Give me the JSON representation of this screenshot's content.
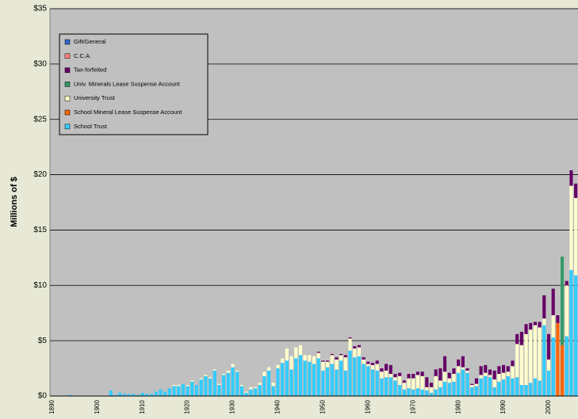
{
  "chart_data": {
    "type": "stacked-bar",
    "y_label": "Millions of $",
    "ylim": [
      0,
      35
    ],
    "yticks": [
      {
        "value": 0,
        "label": "$0"
      },
      {
        "value": 5,
        "label": "$5"
      },
      {
        "value": 10,
        "label": "$10"
      },
      {
        "value": 15,
        "label": "$15"
      },
      {
        "value": 20,
        "label": "$20"
      },
      {
        "value": 25,
        "label": "$25"
      },
      {
        "value": 30,
        "label": "$30"
      },
      {
        "value": 35,
        "label": "$35"
      }
    ],
    "grid": true,
    "legend": "upper-left",
    "categories": [
      "1890",
      null,
      null,
      null,
      null,
      null,
      null,
      null,
      null,
      null,
      "1900",
      null,
      null,
      null,
      null,
      null,
      null,
      null,
      null,
      null,
      "1910",
      null,
      null,
      null,
      null,
      null,
      null,
      null,
      null,
      null,
      "1920",
      null,
      null,
      null,
      null,
      null,
      null,
      null,
      null,
      null,
      "1930",
      null,
      null,
      null,
      null,
      null,
      null,
      null,
      null,
      null,
      "1940",
      null,
      null,
      null,
      null,
      null,
      null,
      null,
      null,
      null,
      "1950",
      null,
      null,
      null,
      null,
      null,
      null,
      null,
      null,
      null,
      "1960",
      null,
      null,
      null,
      null,
      null,
      null,
      null,
      null,
      null,
      "1970",
      null,
      null,
      null,
      null,
      null,
      null,
      null,
      null,
      null,
      "1980",
      null,
      null,
      null,
      null,
      null,
      null,
      null,
      null,
      null,
      "1990",
      null,
      null,
      null,
      null,
      null,
      null,
      null,
      null,
      null,
      "2000",
      null,
      null,
      null,
      null,
      null,
      null
    ],
    "series": [
      {
        "name": "School Trust",
        "color": "#33ccff",
        "values": [
          0,
          0,
          0,
          0,
          0.1,
          0,
          0,
          0,
          0,
          0,
          0,
          0,
          0,
          0.5,
          0.1,
          0.3,
          0.2,
          0.2,
          0.2,
          0.1,
          0.3,
          0.2,
          0.2,
          0.4,
          0.6,
          0.4,
          0.7,
          0.9,
          0.9,
          1.1,
          0.9,
          1.3,
          1.0,
          1.5,
          1.8,
          1.6,
          2.3,
          1.0,
          1.9,
          2.1,
          2.6,
          2.2,
          0.9,
          0.3,
          0.6,
          0.7,
          1.0,
          1.8,
          2.3,
          0.9,
          2.5,
          3.0,
          3.2,
          2.4,
          3.4,
          3.7,
          3.2,
          3.1,
          2.9,
          3.4,
          2.3,
          2.6,
          2.9,
          2.4,
          3.2,
          2.3,
          4.1,
          3.5,
          3.6,
          2.9,
          2.7,
          2.4,
          2.3,
          1.6,
          1.7,
          1.7,
          1.4,
          1.0,
          0.6,
          0.7,
          0.6,
          0.7,
          0.6,
          0.5,
          0.3,
          0.6,
          0.8,
          1.3,
          1.2,
          1.3,
          2.1,
          2.4,
          2.1,
          0.8,
          0.9,
          1.6,
          1.8,
          1.7,
          0.8,
          1.3,
          1.5,
          1.8,
          1.6,
          1.7,
          1.0,
          1.0,
          1.2,
          1.6,
          1.4,
          6.4,
          2.3,
          5.3,
          0,
          0,
          5.4,
          11.4,
          10.9
        ]
      },
      {
        "name": "School Mineral Lease Suspense Account",
        "color": "#ff6600",
        "values": [
          0,
          0,
          0,
          0,
          0,
          0,
          0,
          0,
          0,
          0,
          0,
          0,
          0,
          0,
          0,
          0,
          0,
          0,
          0,
          0,
          0,
          0,
          0,
          0,
          0,
          0,
          0,
          0,
          0,
          0,
          0,
          0,
          0,
          0,
          0,
          0,
          0,
          0,
          0,
          0,
          0,
          0,
          0,
          0,
          0,
          0,
          0,
          0,
          0,
          0,
          0,
          0,
          0,
          0,
          0,
          0,
          0,
          0,
          0,
          0,
          0,
          0,
          0,
          0,
          0,
          0,
          0,
          0,
          0,
          0,
          0,
          0,
          0,
          0,
          0,
          0,
          0,
          0,
          0,
          0,
          0,
          0,
          0,
          0,
          0,
          0,
          0,
          0,
          0,
          0,
          0,
          0,
          0,
          0,
          0,
          0,
          0,
          0,
          0,
          0,
          0,
          0,
          0,
          0,
          0,
          0,
          0,
          0,
          0,
          0,
          0,
          0,
          6.6,
          4.6,
          0,
          0,
          0
        ]
      },
      {
        "name": "University Trust",
        "color": "#ffffcc",
        "values": [
          0,
          0,
          0,
          0,
          0,
          0,
          0,
          0,
          0,
          0,
          0,
          0,
          0,
          0,
          0,
          0,
          0,
          0,
          0,
          0,
          0,
          0,
          0,
          0,
          0,
          0,
          0,
          0.1,
          0.1,
          0,
          0.1,
          0.1,
          0,
          0.1,
          0.1,
          0.1,
          0.1,
          0.1,
          0.1,
          0.2,
          0.3,
          0.1,
          0.1,
          0.1,
          0.2,
          0.1,
          0.2,
          0.4,
          0.3,
          0.3,
          0.3,
          0.4,
          1.1,
          1.2,
          1.0,
          0.9,
          0.5,
          0.6,
          0.7,
          0.5,
          0.8,
          0.5,
          0.8,
          0.9,
          0.5,
          1.2,
          1.1,
          0.8,
          0.8,
          0.4,
          0.2,
          0.4,
          0.6,
          0.6,
          0.6,
          0.3,
          0.3,
          0.8,
          0.6,
          0.9,
          1.0,
          1.2,
          1.2,
          0.3,
          0.5,
          1.2,
          0.6,
          0.9,
          0.4,
          0.7,
          0.6,
          0.2,
          0.2,
          0.2,
          0.2,
          0.3,
          0.3,
          0.2,
          0.7,
          0.7,
          0.6,
          0.4,
          1.1,
          3.0,
          3.6,
          4.6,
          4.8,
          4.8,
          4.8,
          0.6,
          1.0,
          2.0,
          0,
          0,
          4.6,
          7.6,
          7.0
        ]
      },
      {
        "name": "Univ. Minerals Lease Suspense Account",
        "color": "#339966",
        "values": [
          0,
          0,
          0,
          0,
          0,
          0,
          0,
          0,
          0,
          0,
          0,
          0,
          0,
          0,
          0,
          0,
          0,
          0,
          0,
          0,
          0,
          0,
          0,
          0,
          0,
          0,
          0,
          0,
          0,
          0,
          0,
          0,
          0,
          0,
          0,
          0,
          0,
          0,
          0,
          0,
          0,
          0,
          0,
          0,
          0,
          0,
          0,
          0,
          0,
          0,
          0,
          0,
          0,
          0,
          0,
          0,
          0,
          0,
          0,
          0,
          0,
          0,
          0,
          0,
          0,
          0,
          0,
          0,
          0,
          0,
          0,
          0,
          0,
          0,
          0,
          0,
          0,
          0,
          0,
          0,
          0,
          0,
          0,
          0,
          0,
          0,
          0,
          0,
          0,
          0,
          0,
          0,
          0,
          0,
          0,
          0,
          0,
          0,
          0,
          0,
          0,
          0,
          0,
          0,
          0,
          0,
          0,
          0,
          0,
          0,
          0,
          0,
          0,
          8.0,
          0,
          0,
          0
        ]
      },
      {
        "name": "Tax-forfeited",
        "color": "#660066",
        "values": [
          0,
          0,
          0,
          0,
          0,
          0,
          0,
          0,
          0,
          0,
          0,
          0,
          0,
          0,
          0,
          0,
          0,
          0,
          0,
          0,
          0,
          0,
          0,
          0,
          0,
          0,
          0,
          0,
          0,
          0,
          0,
          0,
          0,
          0,
          0,
          0,
          0,
          0,
          0,
          0,
          0,
          0,
          0,
          0,
          0,
          0,
          0,
          0,
          0,
          0,
          0,
          0,
          0,
          0,
          0,
          0,
          0,
          0,
          0,
          0.1,
          0.1,
          0.1,
          0.1,
          0.2,
          0.1,
          0.2,
          0.1,
          0.2,
          0.2,
          0.2,
          0.2,
          0.2,
          0.3,
          0.3,
          0.6,
          0.8,
          0.3,
          0.3,
          0.2,
          0.4,
          0.4,
          0.3,
          0.4,
          0.9,
          0.4,
          0.6,
          1.1,
          1.4,
          0.5,
          0.5,
          0.6,
          1.0,
          0.2,
          0.1,
          0.5,
          0.8,
          0.7,
          0.5,
          0.8,
          0.7,
          0.7,
          0.5,
          0.5,
          0.9,
          1.2,
          0.9,
          0.6,
          0.3,
          0.5,
          2.1,
          2.3,
          2.4,
          0.7,
          0,
          0.4,
          1.4,
          1.3
        ]
      },
      {
        "name": "C.C.A.",
        "color": "#ff8080",
        "values": [
          0,
          0,
          0,
          0,
          0,
          0,
          0,
          0,
          0,
          0,
          0,
          0,
          0,
          0,
          0,
          0,
          0,
          0,
          0,
          0,
          0,
          0,
          0,
          0,
          0,
          0,
          0,
          0,
          0,
          0,
          0,
          0,
          0,
          0,
          0,
          0,
          0,
          0,
          0,
          0,
          0,
          0,
          0,
          0,
          0,
          0,
          0,
          0,
          0,
          0,
          0,
          0,
          0,
          0,
          0,
          0,
          0,
          0,
          0,
          0,
          0,
          0,
          0,
          0,
          0,
          0,
          0,
          0,
          0,
          0,
          0,
          0,
          0,
          0,
          0,
          0,
          0,
          0,
          0,
          0,
          0,
          0,
          0,
          0,
          0,
          0,
          0,
          0,
          0,
          0,
          0,
          0,
          0,
          0,
          0,
          0,
          0,
          0,
          0,
          0,
          0,
          0,
          0,
          0,
          0,
          0,
          0,
          0,
          0,
          0,
          0,
          0,
          0,
          0,
          0,
          0,
          0
        ]
      },
      {
        "name": "Gift/General",
        "color": "#3366cc",
        "values": [
          0,
          0,
          0,
          0,
          0,
          0,
          0,
          0,
          0,
          0,
          0,
          0,
          0,
          0,
          0,
          0,
          0,
          0,
          0,
          0,
          0,
          0,
          0,
          0,
          0,
          0,
          0,
          0,
          0,
          0,
          0,
          0,
          0,
          0,
          0,
          0,
          0,
          0,
          0,
          0,
          0,
          0,
          0,
          0,
          0,
          0,
          0,
          0,
          0,
          0,
          0,
          0,
          0,
          0,
          0,
          0,
          0,
          0,
          0,
          0,
          0,
          0,
          0,
          0,
          0,
          0,
          0,
          0,
          0,
          0,
          0,
          0,
          0,
          0,
          0,
          0,
          0,
          0,
          0,
          0,
          0,
          0,
          0,
          0,
          0,
          0,
          0,
          0,
          0,
          0,
          0,
          0,
          0,
          0,
          0,
          0,
          0,
          0,
          0,
          0,
          0,
          0,
          0,
          0,
          0,
          0,
          0,
          0,
          0,
          0,
          0,
          0,
          0,
          0,
          0,
          0,
          0
        ]
      }
    ]
  }
}
